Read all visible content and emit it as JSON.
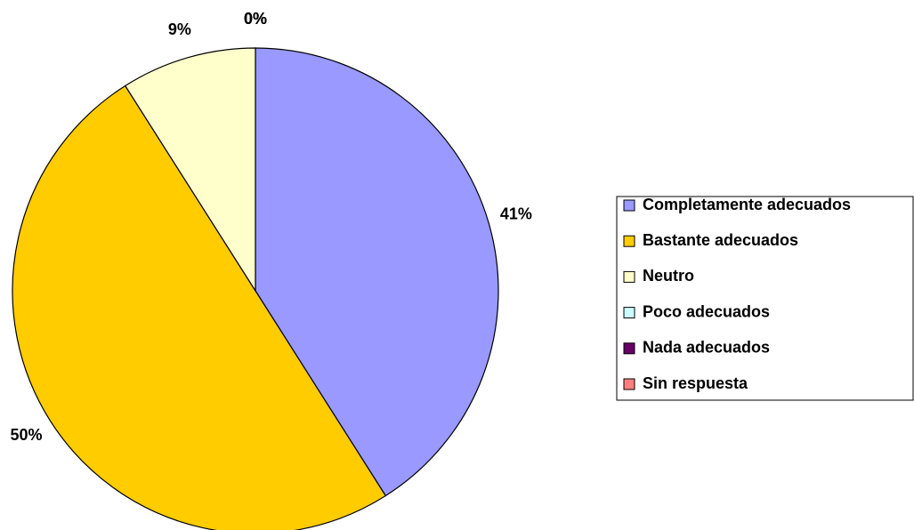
{
  "chart_data": {
    "type": "pie",
    "categories": [
      "Completamente adecuados",
      "Bastante adecuados",
      "Neutro",
      "Poco adecuados",
      "Nada adecuados",
      "Sin respuesta"
    ],
    "values": [
      41,
      50,
      9,
      0,
      0,
      0
    ],
    "value_labels": [
      "41%",
      "50%",
      "9%",
      "0%",
      "0%",
      "0%"
    ],
    "colors": [
      "#9999ff",
      "#ffcc00",
      "#ffffcc",
      "#ccffff",
      "#660066",
      "#ff8080"
    ],
    "legend": "right"
  }
}
